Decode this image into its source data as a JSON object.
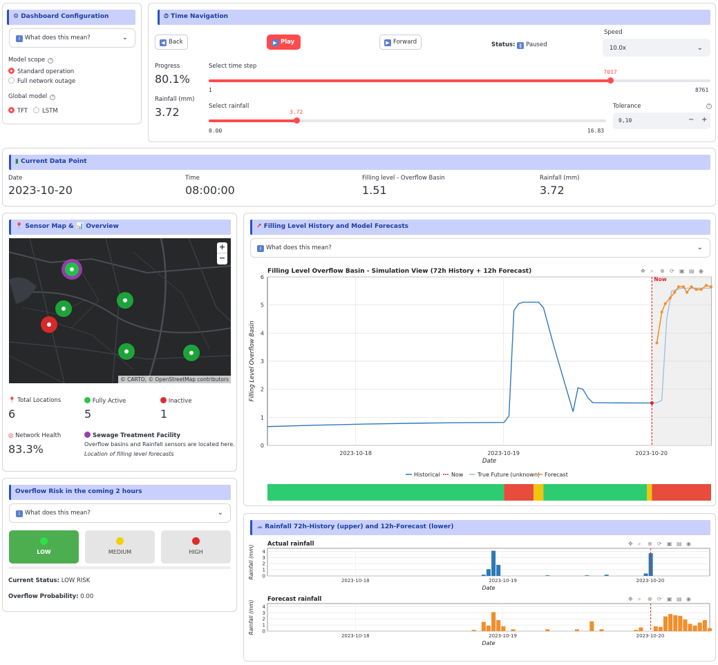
{
  "config": {
    "title": "Dashboard Configuration",
    "explain": "What does this mean?",
    "model_scope_label": "Model scope",
    "scope_options": [
      "Standard operation",
      "Full network outage"
    ],
    "global_model_label": "Global model",
    "model_options": [
      "TFT",
      "LSTM"
    ]
  },
  "time_nav": {
    "title": "Time Navigation",
    "back": "Back",
    "play": "Play",
    "forward": "Forward",
    "status_label": "Status:",
    "status_value": "Paused",
    "speed_label": "Speed",
    "speed_value": "10.0x",
    "progress_label": "Progress",
    "progress_value": "80.1%",
    "rain_label": "Rainfall (mm)",
    "rain_value": "3.72",
    "timestep_label": "Select time step",
    "timestep_value": "7017",
    "timestep_min": "1",
    "timestep_max": "8761",
    "timestep_fraction": 0.801,
    "rainsel_label": "Select rainfall",
    "rainsel_value": "3.72",
    "rainsel_min": "0.00",
    "rainsel_max": "16.83",
    "rainsel_fraction": 0.221,
    "tolerance_label": "Tolerance",
    "tolerance_value": "0,10",
    "minus": "−",
    "plus": "+"
  },
  "current": {
    "title": "Current Data Point",
    "date_label": "Date",
    "date_value": "2023-10-20",
    "time_label": "Time",
    "time_value": "08:00:00",
    "fill_label": "Filling level - Overflow Basin",
    "fill_value": "1.51",
    "rain_label": "Rainfall (mm)",
    "rain_value": "3.72"
  },
  "sensor_map": {
    "title": "Sensor Map & 📊 Overview",
    "zoom_in": "+",
    "zoom_out": "−",
    "attribution": "© CARTO, © OpenStreetMap contributors",
    "total_label": "Total Locations",
    "total_value": "6",
    "active_label": "Fully Active",
    "active_value": "5",
    "inactive_label": "Inactive",
    "inactive_value": "1",
    "health_label": "Network Health",
    "health_value": "83.3%",
    "stp_label": "Sewage Treatment Facility",
    "stp_desc": "Overflow basins and Rainfall sensors are located here.",
    "stp_note": "Location of filling level forecasts"
  },
  "risk": {
    "title": "Overflow Risk in the coming 2 hours",
    "explain": "What does this mean?",
    "levels": [
      "LOW",
      "MEDIUM",
      "HIGH"
    ],
    "status_label": "Current Status:",
    "status_value": "LOW RISK",
    "prob_label": "Overflow Probability:",
    "prob_value": "0.00",
    "colors": {
      "low": "#4cae4f",
      "medium": "#e5e5e5",
      "high": "#e5e5e5"
    }
  },
  "filling": {
    "title": "Filling Level History and Model Forecasts",
    "explain": "What does this mean?"
  },
  "rainfall_panel": {
    "title": "Rainfall 72h-History (upper) and 12h-Forecast (lower)"
  },
  "chart_data": [
    {
      "type": "line",
      "title": "Filling Level Overflow Basin - Simulation View (72h History + 12h Forecast)",
      "xlabel": "Date",
      "ylabel": "Filling Level Overflow Basin",
      "ylim": [
        0,
        6
      ],
      "yticks": [
        "0",
        "1",
        "2",
        "3",
        "4",
        "5",
        "6"
      ],
      "xticks": [
        "2023-10-18",
        "2023-10-19",
        "2023-10-20"
      ],
      "now_label": "Now",
      "legend": [
        "Historical",
        "Now",
        "True Future (unknown)",
        "Forecast"
      ],
      "legend_position": "bottom",
      "series": [
        {
          "name": "Historical",
          "color": "#2e78b7",
          "points": [
            [
              0,
              0.67
            ],
            [
              10,
              0.72
            ],
            [
              20,
              0.76
            ],
            [
              30,
              0.79
            ],
            [
              40,
              0.81
            ],
            [
              48,
              0.82
            ],
            [
              49,
              1.05
            ],
            [
              50,
              4.8
            ],
            [
              51,
              5.05
            ],
            [
              52,
              5.1
            ],
            [
              55,
              5.1
            ],
            [
              56,
              4.9
            ],
            [
              58,
              3.6
            ],
            [
              60,
              2.4
            ],
            [
              62,
              1.2
            ],
            [
              63,
              2.05
            ],
            [
              64,
              2.0
            ],
            [
              65,
              1.7
            ],
            [
              66,
              1.52
            ],
            [
              75,
              1.51
            ],
            [
              78,
              1.51
            ]
          ]
        },
        {
          "name": "True Future (unknown)",
          "color": "#9ec3e0",
          "points": [
            [
              78,
              1.51
            ],
            [
              79,
              1.52
            ],
            [
              80,
              1.6
            ],
            [
              81,
              4.5
            ],
            [
              82,
              5.5
            ],
            [
              84,
              5.6
            ],
            [
              90,
              5.6
            ]
          ]
        },
        {
          "name": "Forecast",
          "color": "#f28e2b",
          "points": [
            [
              79,
              3.65
            ],
            [
              80,
              4.75
            ],
            [
              80.7,
              5.05
            ],
            [
              81.7,
              5.25
            ],
            [
              82.6,
              5.45
            ],
            [
              83.4,
              5.65
            ],
            [
              84.4,
              5.65
            ],
            [
              85.1,
              5.45
            ],
            [
              86,
              5.65
            ],
            [
              87,
              5.55
            ],
            [
              88,
              5.55
            ],
            [
              89,
              5.7
            ],
            [
              90,
              5.65
            ]
          ]
        }
      ],
      "risk_strip": [
        {
          "from": 0,
          "to": 48,
          "level": "low"
        },
        {
          "from": 48,
          "to": 54,
          "level": "high"
        },
        {
          "from": 54,
          "to": 56,
          "level": "medium"
        },
        {
          "from": 56,
          "to": 77,
          "level": "low"
        },
        {
          "from": 77,
          "to": 78,
          "level": "medium"
        },
        {
          "from": 78,
          "to": 90,
          "level": "high"
        }
      ]
    },
    {
      "type": "bar",
      "title": "Actual rainfall",
      "xlabel": "Date",
      "ylabel": "Rainfall (mm)",
      "ylim": [
        0,
        4.5
      ],
      "yticks": [
        "0",
        "1",
        "2",
        "3",
        "4"
      ],
      "xticks": [
        "2023-10-18",
        "2023-10-19",
        "2023-10-20"
      ],
      "color": "#2e78b7",
      "bars": [
        [
          44,
          0.2
        ],
        [
          45,
          1.1
        ],
        [
          46,
          4.1
        ],
        [
          47,
          1.8
        ],
        [
          57,
          0.1
        ],
        [
          65,
          0.1
        ],
        [
          69,
          0.2
        ],
        [
          77,
          0.4
        ],
        [
          78,
          3.7
        ]
      ]
    },
    {
      "type": "bar",
      "title": "Forecast rainfall",
      "xlabel": "Date",
      "ylabel": "Rainfall (mm)",
      "ylim": [
        0,
        4.5
      ],
      "yticks": [
        "0",
        "1",
        "2",
        "3",
        "4"
      ],
      "xticks": [
        "2023-10-18",
        "2023-10-19",
        "2023-10-20"
      ],
      "color": "#f28e2b",
      "bars": [
        [
          42,
          0.2
        ],
        [
          44,
          1.5
        ],
        [
          45,
          0.9
        ],
        [
          46,
          3.1
        ],
        [
          47,
          1.8
        ],
        [
          48,
          0.8
        ],
        [
          50,
          0.3
        ],
        [
          57,
          0.3
        ],
        [
          63,
          0.3
        ],
        [
          66,
          1.6
        ],
        [
          68,
          0.3
        ],
        [
          75,
          0.2
        ],
        [
          76,
          0.6
        ],
        [
          79,
          0.8
        ],
        [
          80,
          0.7
        ],
        [
          81,
          2.4
        ],
        [
          82,
          2.8
        ],
        [
          83,
          2.6
        ],
        [
          84,
          2.5
        ],
        [
          85,
          1.9
        ],
        [
          86,
          1.2
        ],
        [
          87,
          0.9
        ],
        [
          88,
          1.4
        ],
        [
          89,
          1.8
        ],
        [
          90,
          0.5
        ]
      ]
    }
  ]
}
